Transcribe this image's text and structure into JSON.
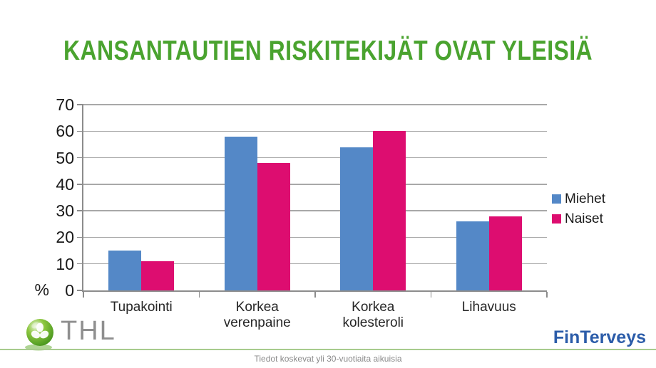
{
  "title": "KANSANTAUTIEN RISKITEKIJÄT OVAT YLEISIÄ",
  "chart_data": {
    "type": "bar",
    "categories": [
      [
        "Tupakointi"
      ],
      [
        "Korkea",
        "verenpaine"
      ],
      [
        "Korkea",
        "kolesteroli"
      ],
      [
        "Lihavuus"
      ]
    ],
    "series": [
      {
        "name": "Miehet",
        "color": "#5488C7",
        "values": [
          15,
          58,
          54,
          26
        ]
      },
      {
        "name": "Naiset",
        "color": "#DD0D70",
        "values": [
          11,
          48,
          60,
          28
        ]
      }
    ],
    "title": "KANSANTAUTIEN RISKITEKIJÄT OVAT YLEISIÄ",
    "xlabel": "",
    "ylabel": "%",
    "ylim": [
      0,
      70
    ],
    "ytick_step": 10,
    "grid": true,
    "legend_position": "right"
  },
  "colors": {
    "title_green": "#4AA32F",
    "bar_blue": "#5488C7",
    "bar_pink": "#DD0D70",
    "gridline": "#A8A8A8",
    "divider_green": "#A7CB8D",
    "finterveys_blue": "#2B5CA9",
    "thl_grey": "#8F8F8F"
  },
  "footer": {
    "caption": "Tiedot koskevat yli 30-vuotiaita aikuisia",
    "thl_label": "THL",
    "finterveys_label": "FinTerveys"
  }
}
